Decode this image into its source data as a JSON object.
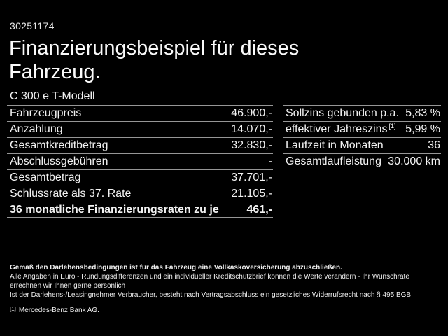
{
  "header": {
    "reference_number": "30251174"
  },
  "title": {
    "line1": "Finanzierungsbeispiel für dieses",
    "line2": "Fahrzeug."
  },
  "vehicle": {
    "model": "C 300 e T-Modell"
  },
  "finance_table": {
    "rows": [
      {
        "label": "Fahrzeugpreis",
        "value": "46.900,-"
      },
      {
        "label": "Anzahlung",
        "value": "14.070,-"
      },
      {
        "label": "Gesamtkreditbetrag",
        "value": "32.830,-"
      },
      {
        "label": "Abschlussgebühren",
        "value": "-"
      },
      {
        "label": "Gesamtbetrag",
        "value": "37.701,-"
      },
      {
        "label": "Schlussrate als 37. Rate",
        "value": "21.105,-"
      },
      {
        "label": "36 monatliche Finanzierungsraten zu je",
        "value": "461,-"
      }
    ]
  },
  "conditions_table": {
    "rows": [
      {
        "label": "Sollzins gebunden p.a.",
        "sup": "",
        "value": "5,83 %"
      },
      {
        "label": "effektiver Jahreszins",
        "sup": "[1]",
        "value": "5,99 %"
      },
      {
        "label": "Laufzeit in Monaten",
        "sup": "",
        "value": "36"
      },
      {
        "label": "Gesamtlaufleistung",
        "sup": "",
        "value": "30.000 km"
      }
    ]
  },
  "footer": {
    "bold_note": "Gemäß den Darlehensbedingungen ist für das Fahrzeug eine Vollkaskoversicherung abzuschließen.",
    "note_line1": "Alle Angaben in Euro - Rundungsdifferenzen und ein individueller Kreditschutzbrief können die Werte verändern - Ihr Wunschrate errechnen wir Ihnen gerne persönlich",
    "note_line2": "Ist der Darlehens-/Leasingnehmer Verbraucher, besteht nach Vertragsabschluss ein gesetzliches Widerrufsrecht nach § 495 BGB",
    "footnote_marker": "[1]",
    "footnote_text": "Mercedes-Benz Bank AG."
  },
  "colors": {
    "background": "#000000",
    "text": "#f2f2f2",
    "separator": "#969696"
  }
}
